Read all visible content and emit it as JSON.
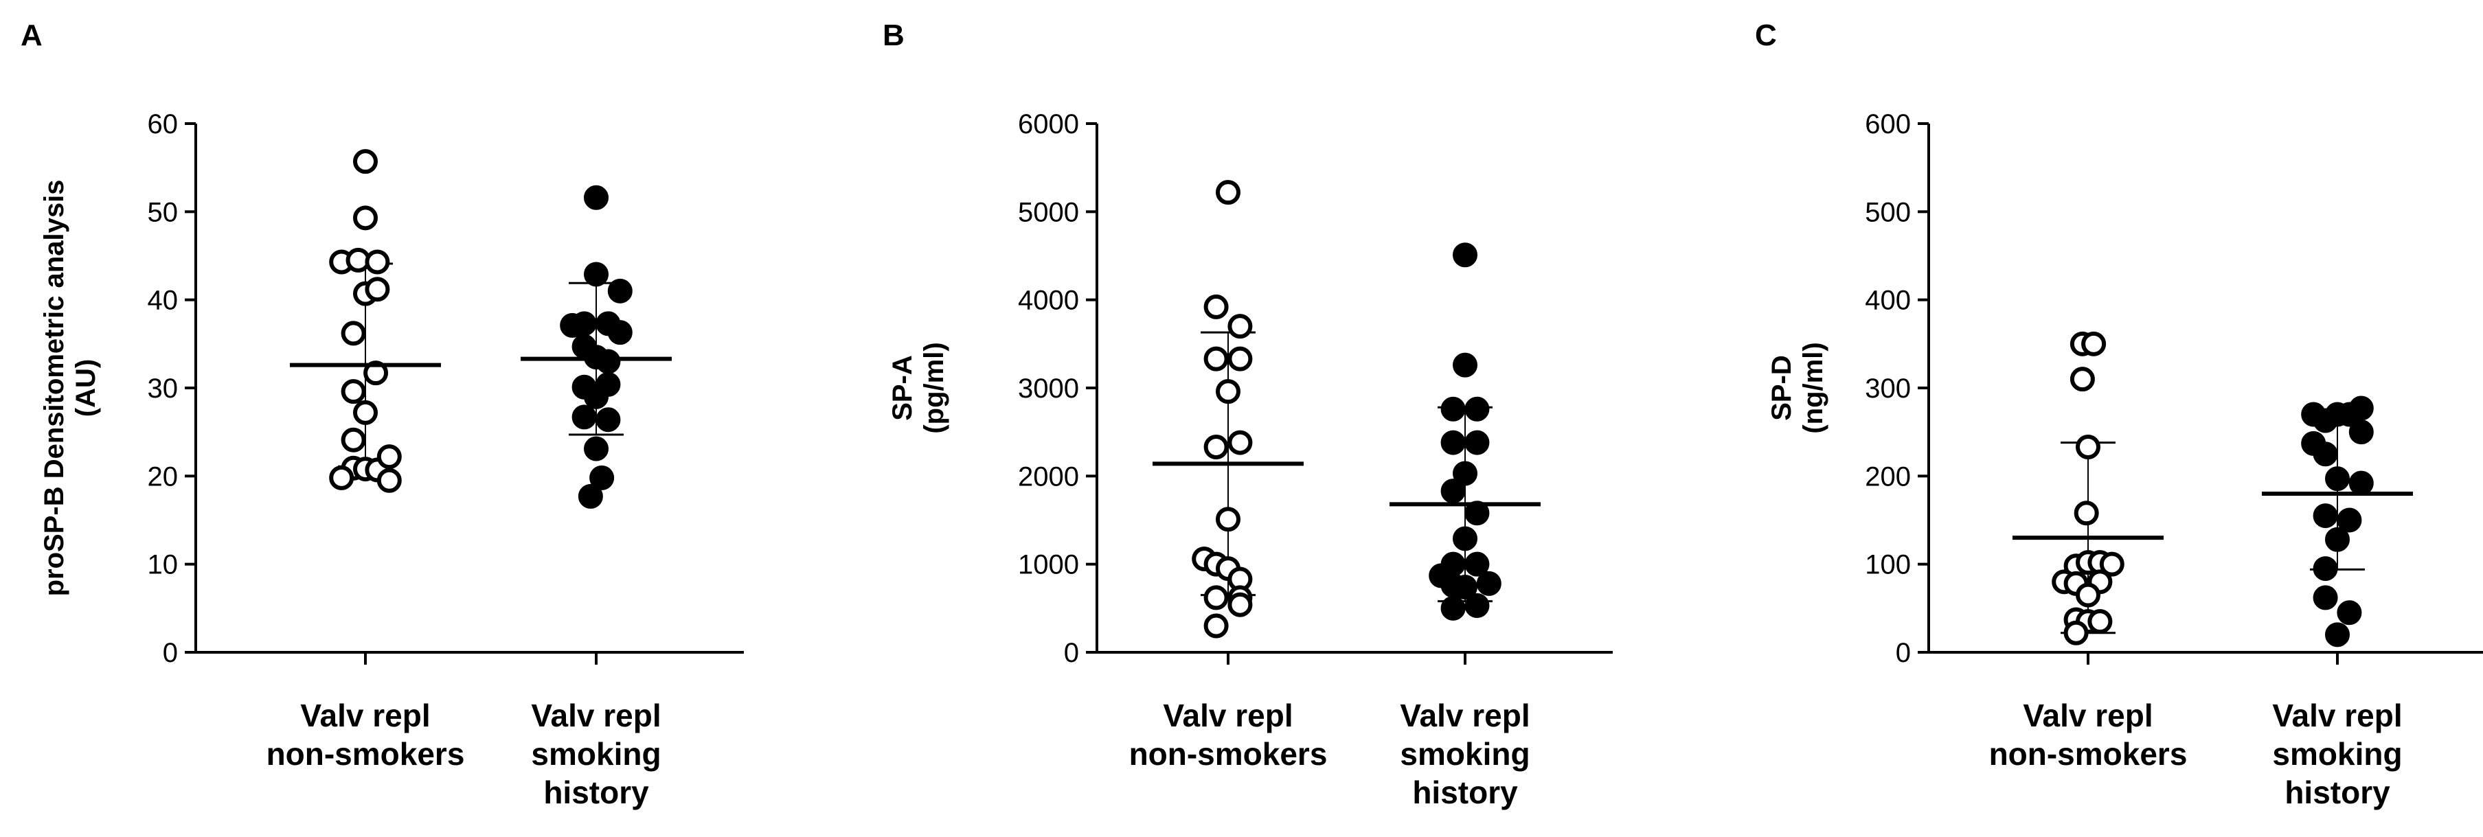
{
  "chart_data": [
    {
      "type": "scatter",
      "panel_label": "A",
      "ylabel_lines": [
        "proSP-B Densitometric analysis",
        "(AU)"
      ],
      "ylim": [
        0,
        60
      ],
      "yticks": [
        0,
        10,
        20,
        30,
        40,
        50,
        60
      ],
      "categories": [
        {
          "label_lines": [
            "Valv repl",
            "non-smokers"
          ]
        },
        {
          "label_lines": [
            "Valv repl",
            "smoking",
            "history"
          ]
        }
      ],
      "series": [
        {
          "marker": "open-circle",
          "points": [
            [
              0,
              55.7
            ],
            [
              0,
              49.3
            ],
            [
              -0.3,
              44.3
            ],
            [
              -0.09,
              44.5
            ],
            [
              0.15,
              44.3
            ],
            [
              0,
              40.7
            ],
            [
              0.15,
              41.2
            ],
            [
              -0.15,
              36.2
            ],
            [
              0.13,
              31.7
            ],
            [
              -0.15,
              29.6
            ],
            [
              0,
              27.2
            ],
            [
              -0.15,
              24.1
            ],
            [
              -0.15,
              20.9
            ],
            [
              0,
              20.8
            ],
            [
              0.15,
              20.7
            ],
            [
              0.3,
              22.2
            ],
            [
              -0.3,
              19.8
            ],
            [
              0.3,
              19.5
            ]
          ],
          "mean": 32.6,
          "sd": 11.5
        },
        {
          "marker": "filled-circle",
          "points": [
            [
              0,
              51.6
            ],
            [
              0,
              42.9
            ],
            [
              0.3,
              41.0
            ],
            [
              -0.3,
              37.1
            ],
            [
              -0.15,
              37.3
            ],
            [
              0.15,
              37.3
            ],
            [
              0.3,
              36.3
            ],
            [
              -0.15,
              34.7
            ],
            [
              0,
              33.5
            ],
            [
              0.15,
              33.0
            ],
            [
              -0.15,
              30.1
            ],
            [
              0.15,
              30.4
            ],
            [
              0,
              29.0
            ],
            [
              -0.15,
              26.7
            ],
            [
              0.15,
              26.4
            ],
            [
              0,
              23.1
            ],
            [
              0.07,
              19.8
            ],
            [
              -0.07,
              17.7
            ]
          ],
          "mean": 33.3,
          "sd": 8.6
        }
      ]
    },
    {
      "type": "scatter",
      "panel_label": "B",
      "ylabel_lines": [
        "SP-A",
        "(pg/ml)"
      ],
      "ylim": [
        0,
        6000
      ],
      "yticks": [
        0,
        1000,
        2000,
        3000,
        4000,
        5000,
        6000
      ],
      "categories": [
        {
          "label_lines": [
            "Valv repl",
            "non-smokers"
          ]
        },
        {
          "label_lines": [
            "Valv repl",
            "smoking",
            "history"
          ]
        }
      ],
      "series": [
        {
          "marker": "open-circle",
          "points": [
            [
              0,
              5220
            ],
            [
              -0.15,
              3920
            ],
            [
              0.15,
              3700
            ],
            [
              -0.15,
              3330
            ],
            [
              0.15,
              3330
            ],
            [
              0,
              2960
            ],
            [
              -0.15,
              2330
            ],
            [
              0.15,
              2380
            ],
            [
              0,
              1510
            ],
            [
              -0.3,
              1060
            ],
            [
              -0.15,
              1000
            ],
            [
              0,
              950
            ],
            [
              0.15,
              830
            ],
            [
              -0.15,
              620
            ],
            [
              0.15,
              620
            ],
            [
              -0.15,
              300
            ],
            [
              0.15,
              540
            ]
          ],
          "mean": 2140,
          "sd": 1490
        },
        {
          "marker": "filled-circle",
          "points": [
            [
              0,
              4510
            ],
            [
              0,
              3260
            ],
            [
              -0.15,
              2760
            ],
            [
              0.15,
              2760
            ],
            [
              -0.15,
              2380
            ],
            [
              0.15,
              2380
            ],
            [
              0,
              2030
            ],
            [
              -0.15,
              1830
            ],
            [
              0.15,
              1580
            ],
            [
              0,
              1290
            ],
            [
              -0.3,
              870
            ],
            [
              0.15,
              1000
            ],
            [
              -0.15,
              1000
            ],
            [
              0.3,
              780
            ],
            [
              -0.15,
              760
            ],
            [
              0,
              740
            ],
            [
              -0.15,
              500
            ],
            [
              0.15,
              530
            ]
          ],
          "mean": 1680,
          "sd": 1100
        }
      ]
    },
    {
      "type": "scatter",
      "panel_label": "C",
      "ylabel_lines": [
        "SP-D",
        "(ng/ml)"
      ],
      "ylim": [
        0,
        600
      ],
      "yticks": [
        0,
        100,
        200,
        300,
        400,
        500,
        600
      ],
      "categories": [
        {
          "label_lines": [
            "Valv repl",
            "non-smokers"
          ]
        },
        {
          "label_lines": [
            "Valv repl",
            "smoking",
            "history"
          ]
        }
      ],
      "series": [
        {
          "marker": "open-circle",
          "points": [
            [
              -0.07,
              350
            ],
            [
              0.07,
              350
            ],
            [
              -0.07,
              310
            ],
            [
              0,
              233
            ],
            [
              -0.02,
              158
            ],
            [
              -0.15,
              98
            ],
            [
              0,
              102
            ],
            [
              0.15,
              102
            ],
            [
              0.3,
              100
            ],
            [
              -0.3,
              80
            ],
            [
              -0.15,
              78
            ],
            [
              0.15,
              80
            ],
            [
              0,
              65
            ],
            [
              -0.15,
              37
            ],
            [
              0,
              35
            ],
            [
              0.15,
              35
            ],
            [
              -0.15,
              22
            ]
          ],
          "mean": 130,
          "sd": 108
        },
        {
          "marker": "filled-circle",
          "points": [
            [
              -0.3,
              270
            ],
            [
              0.3,
              277
            ],
            [
              -0.15,
              263
            ],
            [
              0,
              270
            ],
            [
              0.15,
              270
            ],
            [
              0.3,
              250
            ],
            [
              -0.3,
              237
            ],
            [
              -0.15,
              225
            ],
            [
              0,
              197
            ],
            [
              0.3,
              192
            ],
            [
              -0.15,
              155
            ],
            [
              0.15,
              150
            ],
            [
              0,
              128
            ],
            [
              -0.15,
              95
            ],
            [
              -0.15,
              62
            ],
            [
              0.15,
              45
            ],
            [
              0,
              20
            ]
          ],
          "mean": 180,
          "sd": 86
        }
      ]
    }
  ]
}
